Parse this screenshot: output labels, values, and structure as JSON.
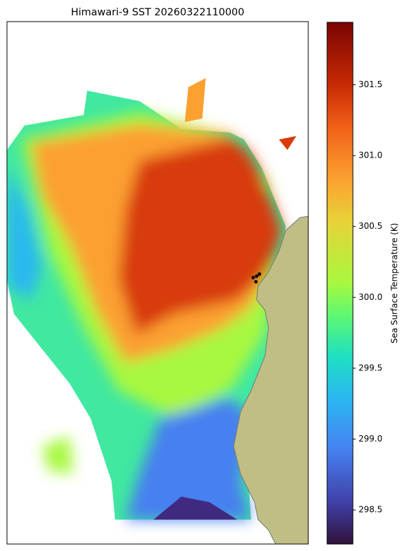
{
  "map": {
    "title": "Himawari-9 SST 20260322110000",
    "colorbar": {
      "label": "Sea Surface Temperature (K)",
      "lim": [
        298.26,
        301.94
      ],
      "ticks": [
        298.5,
        {
          "value": 299,
          "label": "299.0"
        },
        299.5,
        {
          "value": 300,
          "label": "300.0"
        },
        300.5,
        {
          "value": 301,
          "label": "301.0"
        },
        301.5
      ]
    }
  }
}
